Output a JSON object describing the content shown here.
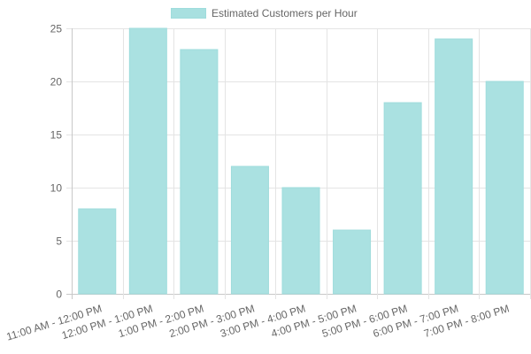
{
  "chart_data": {
    "type": "bar",
    "title": "",
    "xlabel": "",
    "ylabel": "",
    "ylim": [
      0,
      25
    ],
    "yticks": [
      0,
      5,
      10,
      15,
      20,
      25
    ],
    "grid": true,
    "legend_position": "top",
    "categories": [
      "11:00 AM - 12:00 PM",
      "12:00 PM - 1:00 PM",
      "1:00 PM - 2:00 PM",
      "2:00 PM - 3:00 PM",
      "3:00 PM - 4:00 PM",
      "4:00 PM - 5:00 PM",
      "5:00 PM - 6:00 PM",
      "6:00 PM - 7:00 PM",
      "7:00 PM - 8:00 PM"
    ],
    "series": [
      {
        "name": "Estimated Customers per Hour",
        "values": [
          8,
          25,
          23,
          12,
          10,
          6,
          18,
          24,
          20
        ],
        "color": "#a8e0e0"
      }
    ]
  },
  "legend": {
    "label": "Estimated Customers per Hour"
  }
}
